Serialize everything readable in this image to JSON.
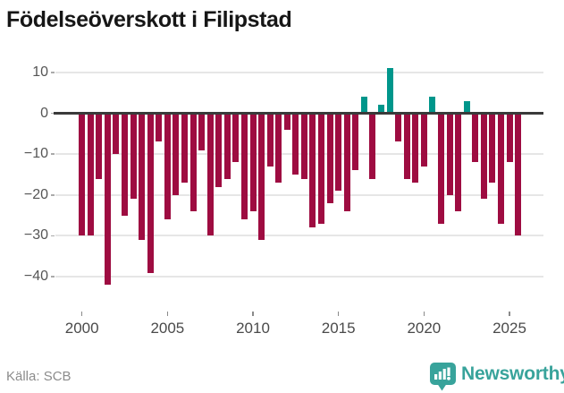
{
  "title": "Födelseöverskott i Filipstad",
  "source": "Källa: SCB",
  "logo": {
    "text": "Newsworthy",
    "icon": "bar-chart-speech-bubble-badge",
    "color": "#38a39b"
  },
  "colors": {
    "negative_bar": "#9e0c41",
    "positive_bar": "#00968b",
    "gridline": "#e6e6e6",
    "zero_axis": "#3a3a3a",
    "axis_text": "#555555"
  },
  "chart_data": {
    "type": "bar",
    "title": "Födelseöverskott i Filipstad",
    "xlabel": "",
    "ylabel": "",
    "grid": true,
    "legend": false,
    "frequency": "half-year",
    "ylim": [
      -45,
      13
    ],
    "y_ticks": [
      10,
      0,
      -10,
      -20,
      -30,
      -40
    ],
    "y_tick_labels": [
      "10",
      "0",
      "−10",
      "−20",
      "−30",
      "−40"
    ],
    "x_tick_years": [
      2000,
      2005,
      2010,
      2015,
      2020,
      2025
    ],
    "x_tick_labels": [
      "2000",
      "2005",
      "2010",
      "2015",
      "2020",
      "2025"
    ],
    "periods": [
      "2000 H1",
      "2000 H2",
      "2001 H1",
      "2001 H2",
      "2002 H1",
      "2002 H2",
      "2003 H1",
      "2003 H2",
      "2004 H1",
      "2004 H2",
      "2005 H1",
      "2005 H2",
      "2006 H1",
      "2006 H2",
      "2007 H1",
      "2007 H2",
      "2008 H1",
      "2008 H2",
      "2009 H1",
      "2009 H2",
      "2010 H1",
      "2010 H2",
      "2011 H1",
      "2011 H2",
      "2012 H1",
      "2012 H2",
      "2013 H1",
      "2013 H2",
      "2014 H1",
      "2014 H2",
      "2015 H1",
      "2015 H2",
      "2016 H1",
      "2016 H2",
      "2017 H1",
      "2017 H2",
      "2018 H1",
      "2018 H2",
      "2019 H1",
      "2019 H2",
      "2020 H1",
      "2020 H2",
      "2021 H1",
      "2021 H2",
      "2022 H1",
      "2022 H2",
      "2023 H1",
      "2023 H2",
      "2024 H1",
      "2024 H2",
      "2025 H1",
      "2025 H2"
    ],
    "values": [
      -30,
      -30,
      -16,
      -42,
      -10,
      -25,
      -21,
      -31,
      -39,
      -7,
      -26,
      -20,
      -17,
      -24,
      -9,
      -30,
      -18,
      -16,
      -12,
      -26,
      -24,
      -31,
      -13,
      -17,
      -4,
      -15,
      -16,
      -28,
      -27,
      -22,
      -19,
      -24,
      -14,
      4,
      -16,
      2,
      11,
      -7,
      -16,
      -17,
      -13,
      4,
      -27,
      -20,
      -24,
      3,
      -12,
      -21,
      -17,
      -27,
      -12,
      -30
    ]
  }
}
